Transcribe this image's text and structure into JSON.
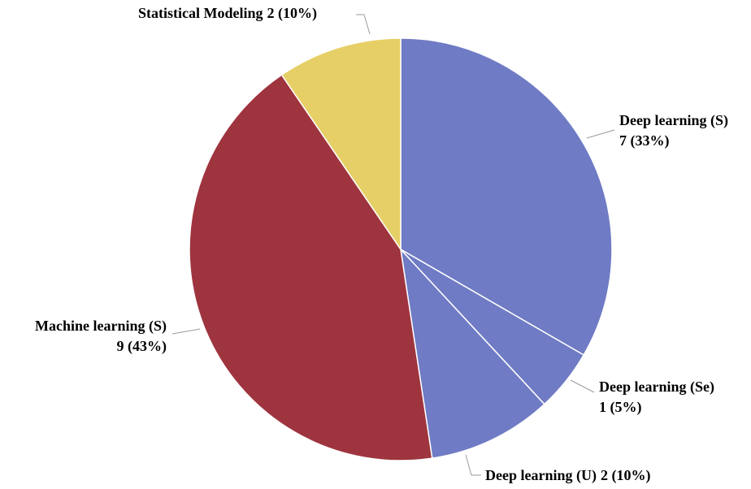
{
  "chart_data": {
    "type": "pie",
    "categories": [
      "Deep learning (S)",
      "Deep learning (Se)",
      "Deep learning (U)",
      "Machine learning (S)",
      "Statistical Modeling"
    ],
    "values": [
      7,
      1,
      2,
      9,
      2
    ],
    "value_labels": [
      "7 (33%)",
      "1 (5%)",
      "2 (10%)",
      "9 (43%)",
      "2 (10%)"
    ],
    "colors": [
      "#6f7bc4",
      "#6f7bc4",
      "#6f7bc4",
      "#9e343e",
      "#e6cf66"
    ]
  }
}
